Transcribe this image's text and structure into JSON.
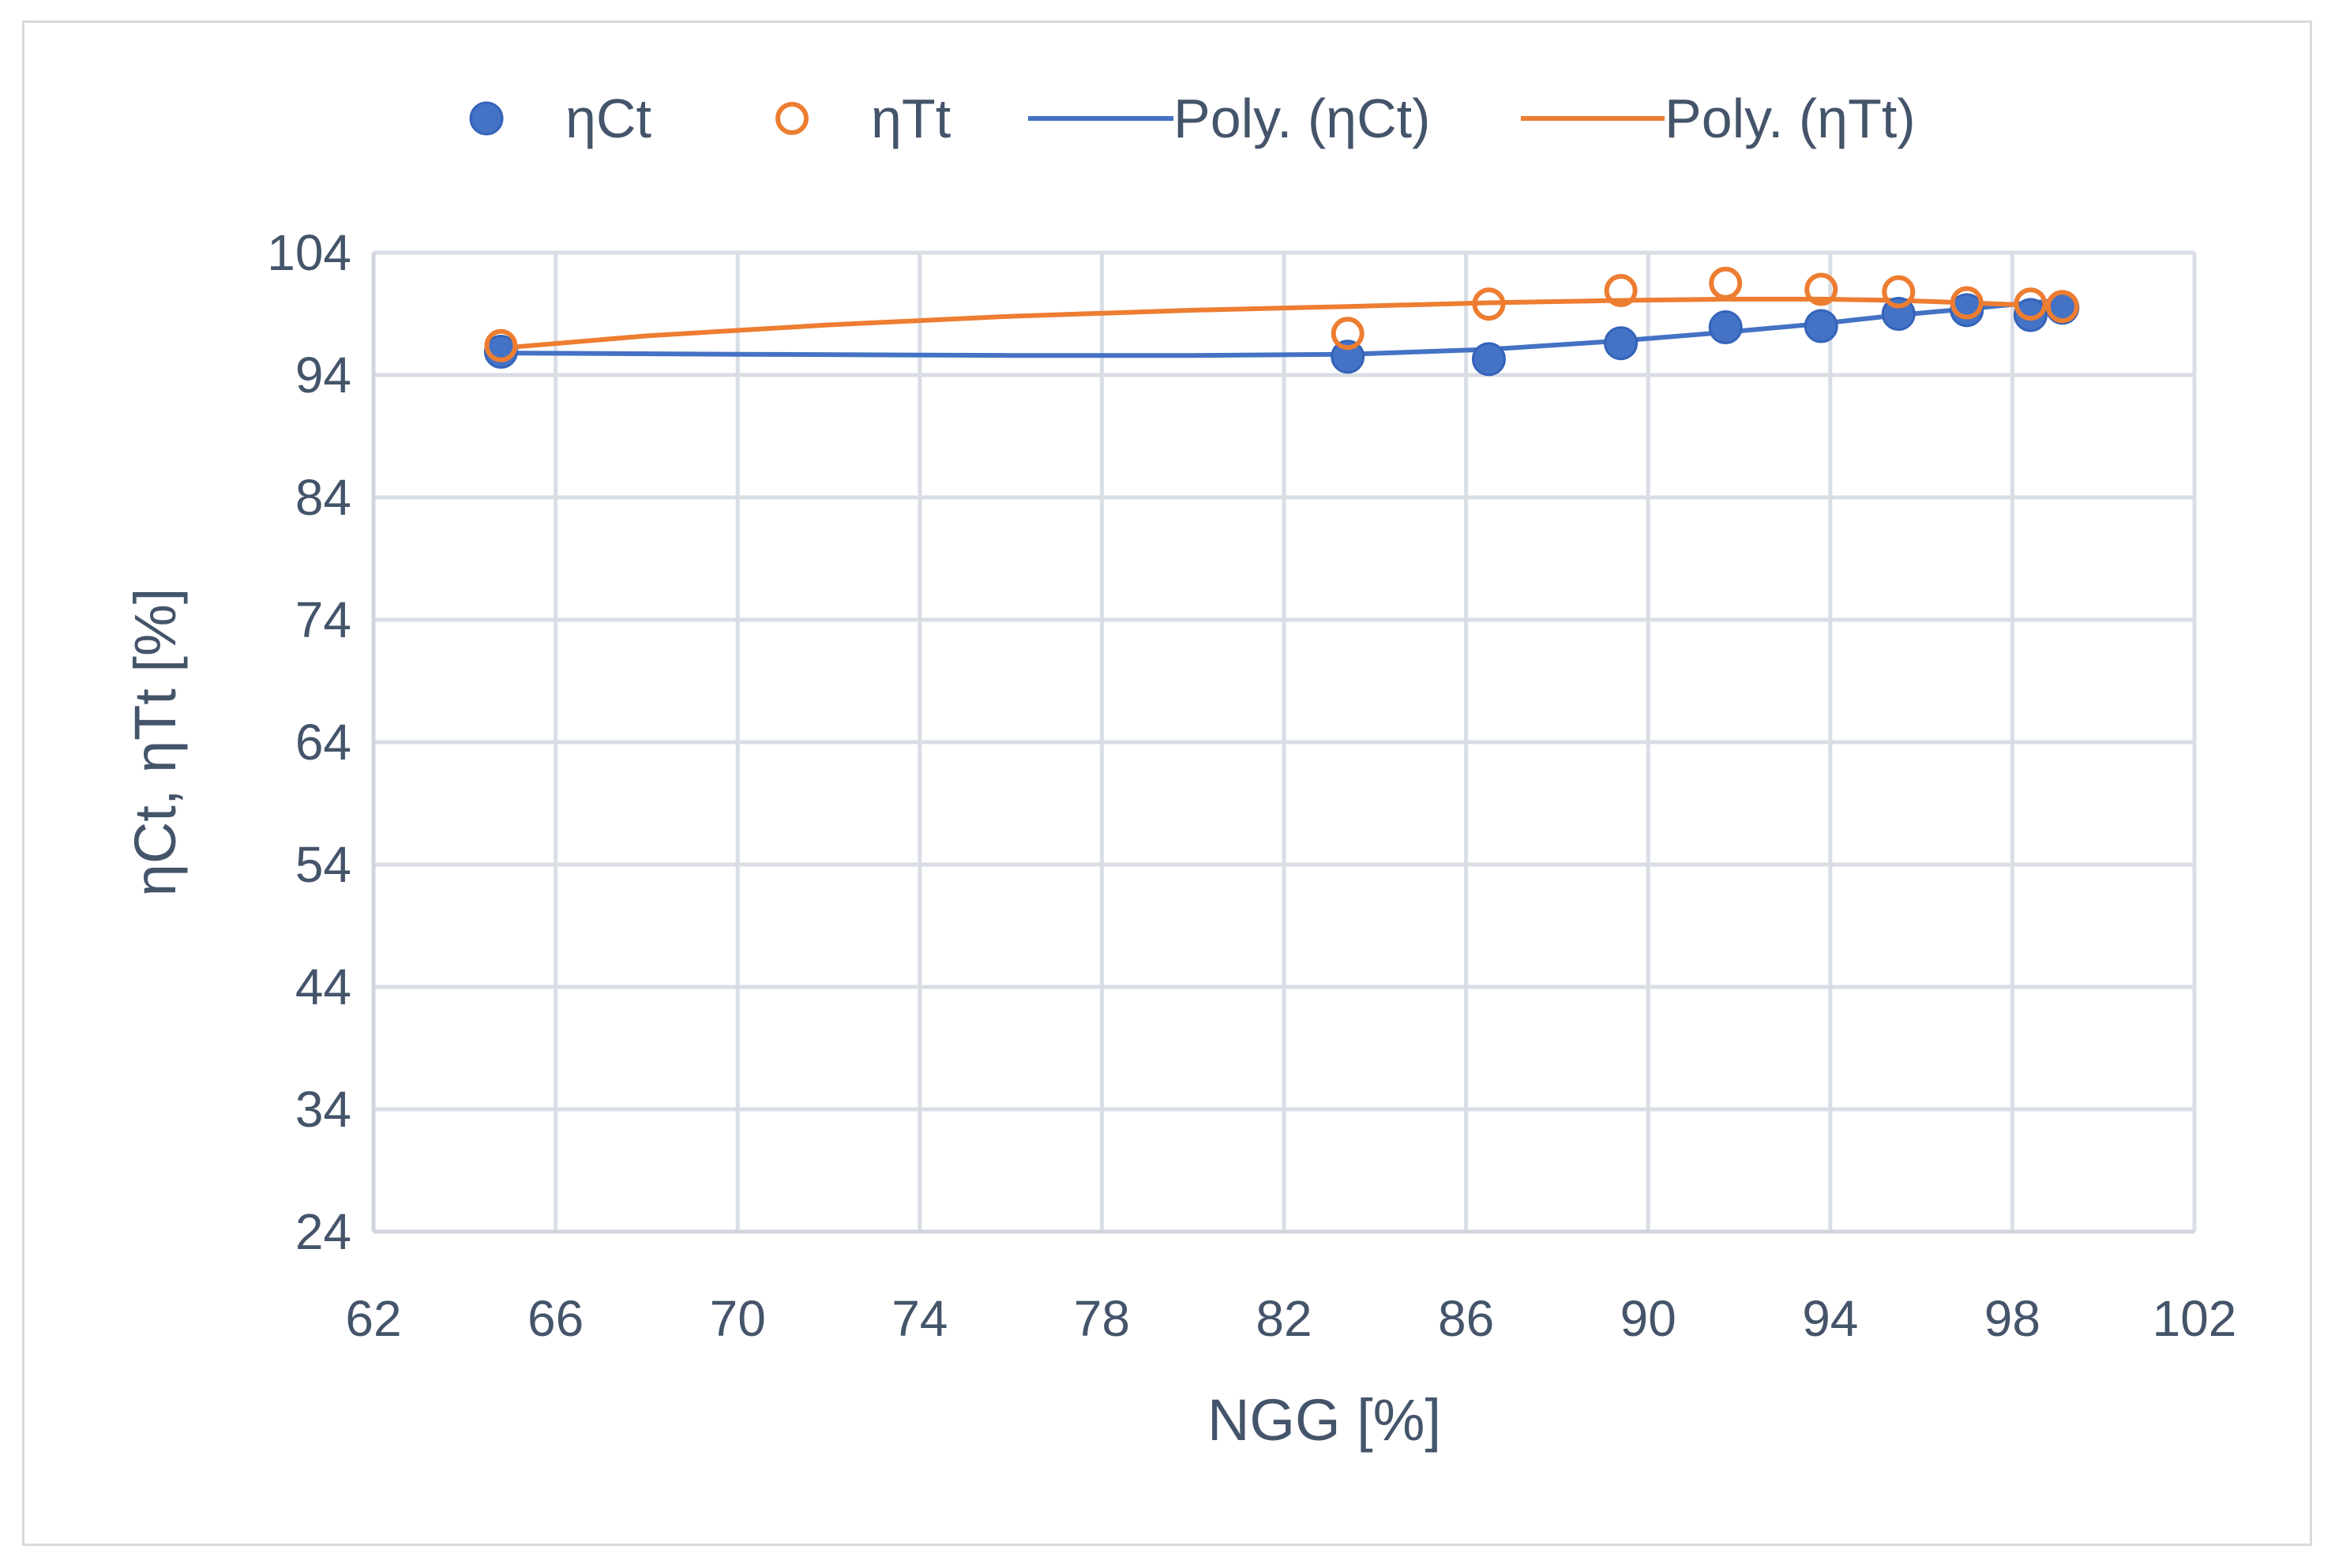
{
  "chart_data": {
    "type": "scatter",
    "title": "",
    "xlabel": "NGG [%]",
    "ylabel": "ηCt, ηTt [%]",
    "xlim": [
      62,
      102
    ],
    "ylim": [
      24,
      104
    ],
    "x_ticks": [
      "62",
      "66",
      "70",
      "74",
      "78",
      "82",
      "86",
      "90",
      "94",
      "98",
      "102"
    ],
    "y_ticks": [
      "24",
      "34",
      "44",
      "54",
      "64",
      "74",
      "84",
      "94",
      "104"
    ],
    "x_tick_values": [
      62,
      66,
      70,
      74,
      78,
      82,
      86,
      90,
      94,
      98,
      102
    ],
    "y_tick_values": [
      24,
      34,
      44,
      54,
      64,
      74,
      84,
      94,
      104
    ],
    "grid": true,
    "legend_position": "top",
    "series": [
      {
        "name": "ηCt",
        "marker": "filled-circle",
        "color": "#4472c4",
        "points": [
          [
            64.8,
            95.9
          ],
          [
            83.4,
            95.5
          ],
          [
            86.5,
            95.3
          ],
          [
            89.4,
            96.6
          ],
          [
            91.7,
            97.9
          ],
          [
            93.8,
            98.0
          ],
          [
            95.5,
            99.0
          ],
          [
            97.0,
            99.3
          ],
          [
            98.4,
            98.9
          ],
          [
            99.1,
            99.5
          ]
        ]
      },
      {
        "name": "ηTt",
        "marker": "open-circle",
        "color": "#ed7d31",
        "points": [
          [
            64.8,
            96.4
          ],
          [
            83.4,
            97.4
          ],
          [
            86.5,
            99.8
          ],
          [
            89.4,
            100.9
          ],
          [
            91.7,
            101.5
          ],
          [
            93.8,
            101.0
          ],
          [
            95.5,
            100.8
          ],
          [
            97.0,
            99.9
          ],
          [
            98.4,
            99.8
          ],
          [
            99.1,
            99.6
          ]
        ]
      },
      {
        "name": "Poly. (ηCt)",
        "type": "line",
        "color": "#4472c4",
        "points": [
          [
            64.8,
            95.8
          ],
          [
            70,
            95.7
          ],
          [
            76,
            95.6
          ],
          [
            80,
            95.6
          ],
          [
            83.4,
            95.7
          ],
          [
            86.5,
            96.1
          ],
          [
            89.4,
            96.8
          ],
          [
            91.7,
            97.5
          ],
          [
            93.8,
            98.2
          ],
          [
            95.5,
            98.9
          ],
          [
            97.0,
            99.4
          ],
          [
            98.4,
            99.9
          ],
          [
            99.1,
            100.1
          ]
        ]
      },
      {
        "name": "Poly. (ηTt)",
        "type": "line",
        "color": "#ed7d31",
        "points": [
          [
            64.8,
            96.2
          ],
          [
            68,
            97.2
          ],
          [
            72,
            98.1
          ],
          [
            76,
            98.8
          ],
          [
            80,
            99.3
          ],
          [
            83.4,
            99.6
          ],
          [
            86.5,
            99.9
          ],
          [
            89.4,
            100.1
          ],
          [
            91.7,
            100.2
          ],
          [
            93.8,
            100.2
          ],
          [
            95.5,
            100.1
          ],
          [
            97.0,
            99.9
          ],
          [
            98.4,
            99.7
          ],
          [
            99.1,
            99.6
          ]
        ]
      }
    ]
  }
}
